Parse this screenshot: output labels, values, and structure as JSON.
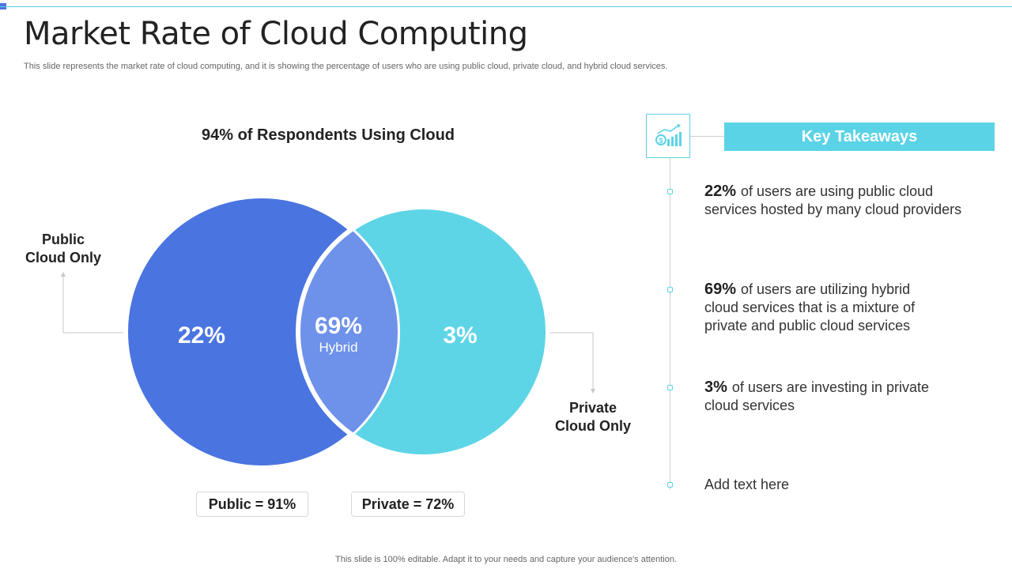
{
  "slide": {
    "title": "Market Rate of Cloud Computing",
    "subtitle": "This slide represents the market rate of cloud computing, and it is showing the percentage of users who are using public cloud, private cloud, and hybrid cloud services.",
    "footer": "This slide is 100% editable. Adapt it to your needs and capture your audience's attention."
  },
  "venn": {
    "title": "94% of Respondents  Using Cloud",
    "public_label_line1": "Public",
    "public_label_line2": "Cloud Only",
    "private_label_line1": "Private",
    "private_label_line2": "Cloud Only",
    "public_value": "22%",
    "hybrid_value": "69%",
    "hybrid_label": "Hybrid",
    "private_value": "3%",
    "public_total": "Public = 91%",
    "private_total": "Private = 72%",
    "colors": {
      "public": "#4a74e0",
      "hybrid": "#6e92ea",
      "private": "#5dd5e6"
    }
  },
  "takeaways": {
    "header": "Key Takeaways",
    "icon": "money-growth-chart-icon",
    "items": [
      {
        "pct": "22%",
        "text": "of users are using public cloud services hosted by many cloud providers"
      },
      {
        "pct": "69%",
        "text": "of users are utilizing hybrid cloud services that is a mixture of private and public cloud services"
      },
      {
        "pct": "3%",
        "text": "of users are investing in private cloud services"
      },
      {
        "pct": "",
        "text": "Add text here"
      }
    ]
  }
}
